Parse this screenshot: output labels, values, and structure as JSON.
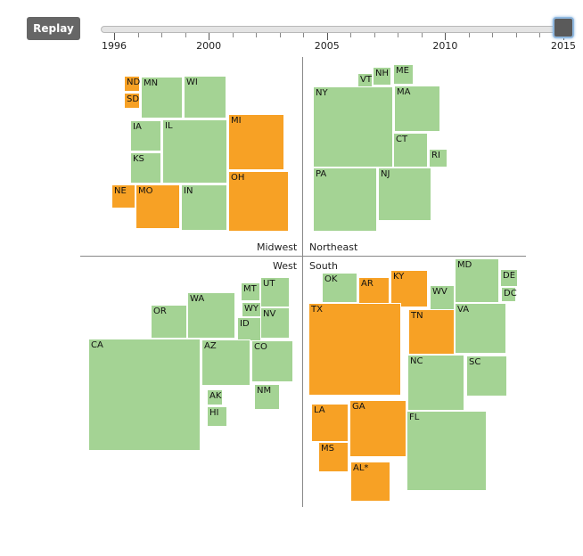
{
  "controls": {
    "replay_label": "Replay"
  },
  "chart_data": {
    "type": "treemap",
    "timeline": {
      "start_year": 1996,
      "end_year": 2015,
      "selected_year": 2015,
      "labels": [
        "1996",
        "2000",
        "2005",
        "2010",
        "2015"
      ]
    },
    "regions": {
      "midwest": "Midwest",
      "northeast": "Northeast",
      "west": "West",
      "south": "South"
    },
    "colors": {
      "green": "#a4d394",
      "orange": "#f7a125"
    },
    "states": [
      {
        "label": "ND",
        "region": "Midwest",
        "color": "orange"
      },
      {
        "label": "SD",
        "region": "Midwest",
        "color": "orange"
      },
      {
        "label": "MN",
        "region": "Midwest",
        "color": "green"
      },
      {
        "label": "WI",
        "region": "Midwest",
        "color": "green"
      },
      {
        "label": "IA",
        "region": "Midwest",
        "color": "green"
      },
      {
        "label": "IL",
        "region": "Midwest",
        "color": "green"
      },
      {
        "label": "KS",
        "region": "Midwest",
        "color": "green"
      },
      {
        "label": "MI",
        "region": "Midwest",
        "color": "orange"
      },
      {
        "label": "NE",
        "region": "Midwest",
        "color": "orange"
      },
      {
        "label": "MO",
        "region": "Midwest",
        "color": "orange"
      },
      {
        "label": "IN",
        "region": "Midwest",
        "color": "green"
      },
      {
        "label": "OH",
        "region": "Midwest",
        "color": "orange"
      },
      {
        "label": "VT",
        "region": "Northeast",
        "color": "green"
      },
      {
        "label": "NH",
        "region": "Northeast",
        "color": "green"
      },
      {
        "label": "ME",
        "region": "Northeast",
        "color": "green"
      },
      {
        "label": "NY",
        "region": "Northeast",
        "color": "green"
      },
      {
        "label": "MA",
        "region": "Northeast",
        "color": "green"
      },
      {
        "label": "CT",
        "region": "Northeast",
        "color": "green"
      },
      {
        "label": "RI",
        "region": "Northeast",
        "color": "green"
      },
      {
        "label": "PA",
        "region": "Northeast",
        "color": "green"
      },
      {
        "label": "NJ",
        "region": "Northeast",
        "color": "green"
      },
      {
        "label": "OR",
        "region": "West",
        "color": "green"
      },
      {
        "label": "WA",
        "region": "West",
        "color": "green"
      },
      {
        "label": "MT",
        "region": "West",
        "color": "green"
      },
      {
        "label": "UT",
        "region": "West",
        "color": "green"
      },
      {
        "label": "WY",
        "region": "West",
        "color": "green"
      },
      {
        "label": "ID",
        "region": "West",
        "color": "green"
      },
      {
        "label": "NV",
        "region": "West",
        "color": "green"
      },
      {
        "label": "CA",
        "region": "West",
        "color": "green"
      },
      {
        "label": "AZ",
        "region": "West",
        "color": "green"
      },
      {
        "label": "CO",
        "region": "West",
        "color": "green"
      },
      {
        "label": "AK",
        "region": "West",
        "color": "green"
      },
      {
        "label": "HI",
        "region": "West",
        "color": "green"
      },
      {
        "label": "NM",
        "region": "West",
        "color": "green"
      },
      {
        "label": "OK",
        "region": "South",
        "color": "green"
      },
      {
        "label": "AR",
        "region": "South",
        "color": "orange"
      },
      {
        "label": "KY",
        "region": "South",
        "color": "orange"
      },
      {
        "label": "WV",
        "region": "South",
        "color": "green"
      },
      {
        "label": "MD",
        "region": "South",
        "color": "green"
      },
      {
        "label": "DE",
        "region": "South",
        "color": "green"
      },
      {
        "label": "DC",
        "region": "South",
        "color": "green"
      },
      {
        "label": "TX",
        "region": "South",
        "color": "orange"
      },
      {
        "label": "TN",
        "region": "South",
        "color": "orange"
      },
      {
        "label": "VA",
        "region": "South",
        "color": "green"
      },
      {
        "label": "NC",
        "region": "South",
        "color": "green"
      },
      {
        "label": "SC",
        "region": "South",
        "color": "green"
      },
      {
        "label": "LA",
        "region": "South",
        "color": "orange"
      },
      {
        "label": "GA",
        "region": "South",
        "color": "orange"
      },
      {
        "label": "FL",
        "region": "South",
        "color": "green"
      },
      {
        "label": "MS",
        "region": "South",
        "color": "orange"
      },
      {
        "label": "AL*",
        "region": "South",
        "color": "orange"
      }
    ]
  }
}
